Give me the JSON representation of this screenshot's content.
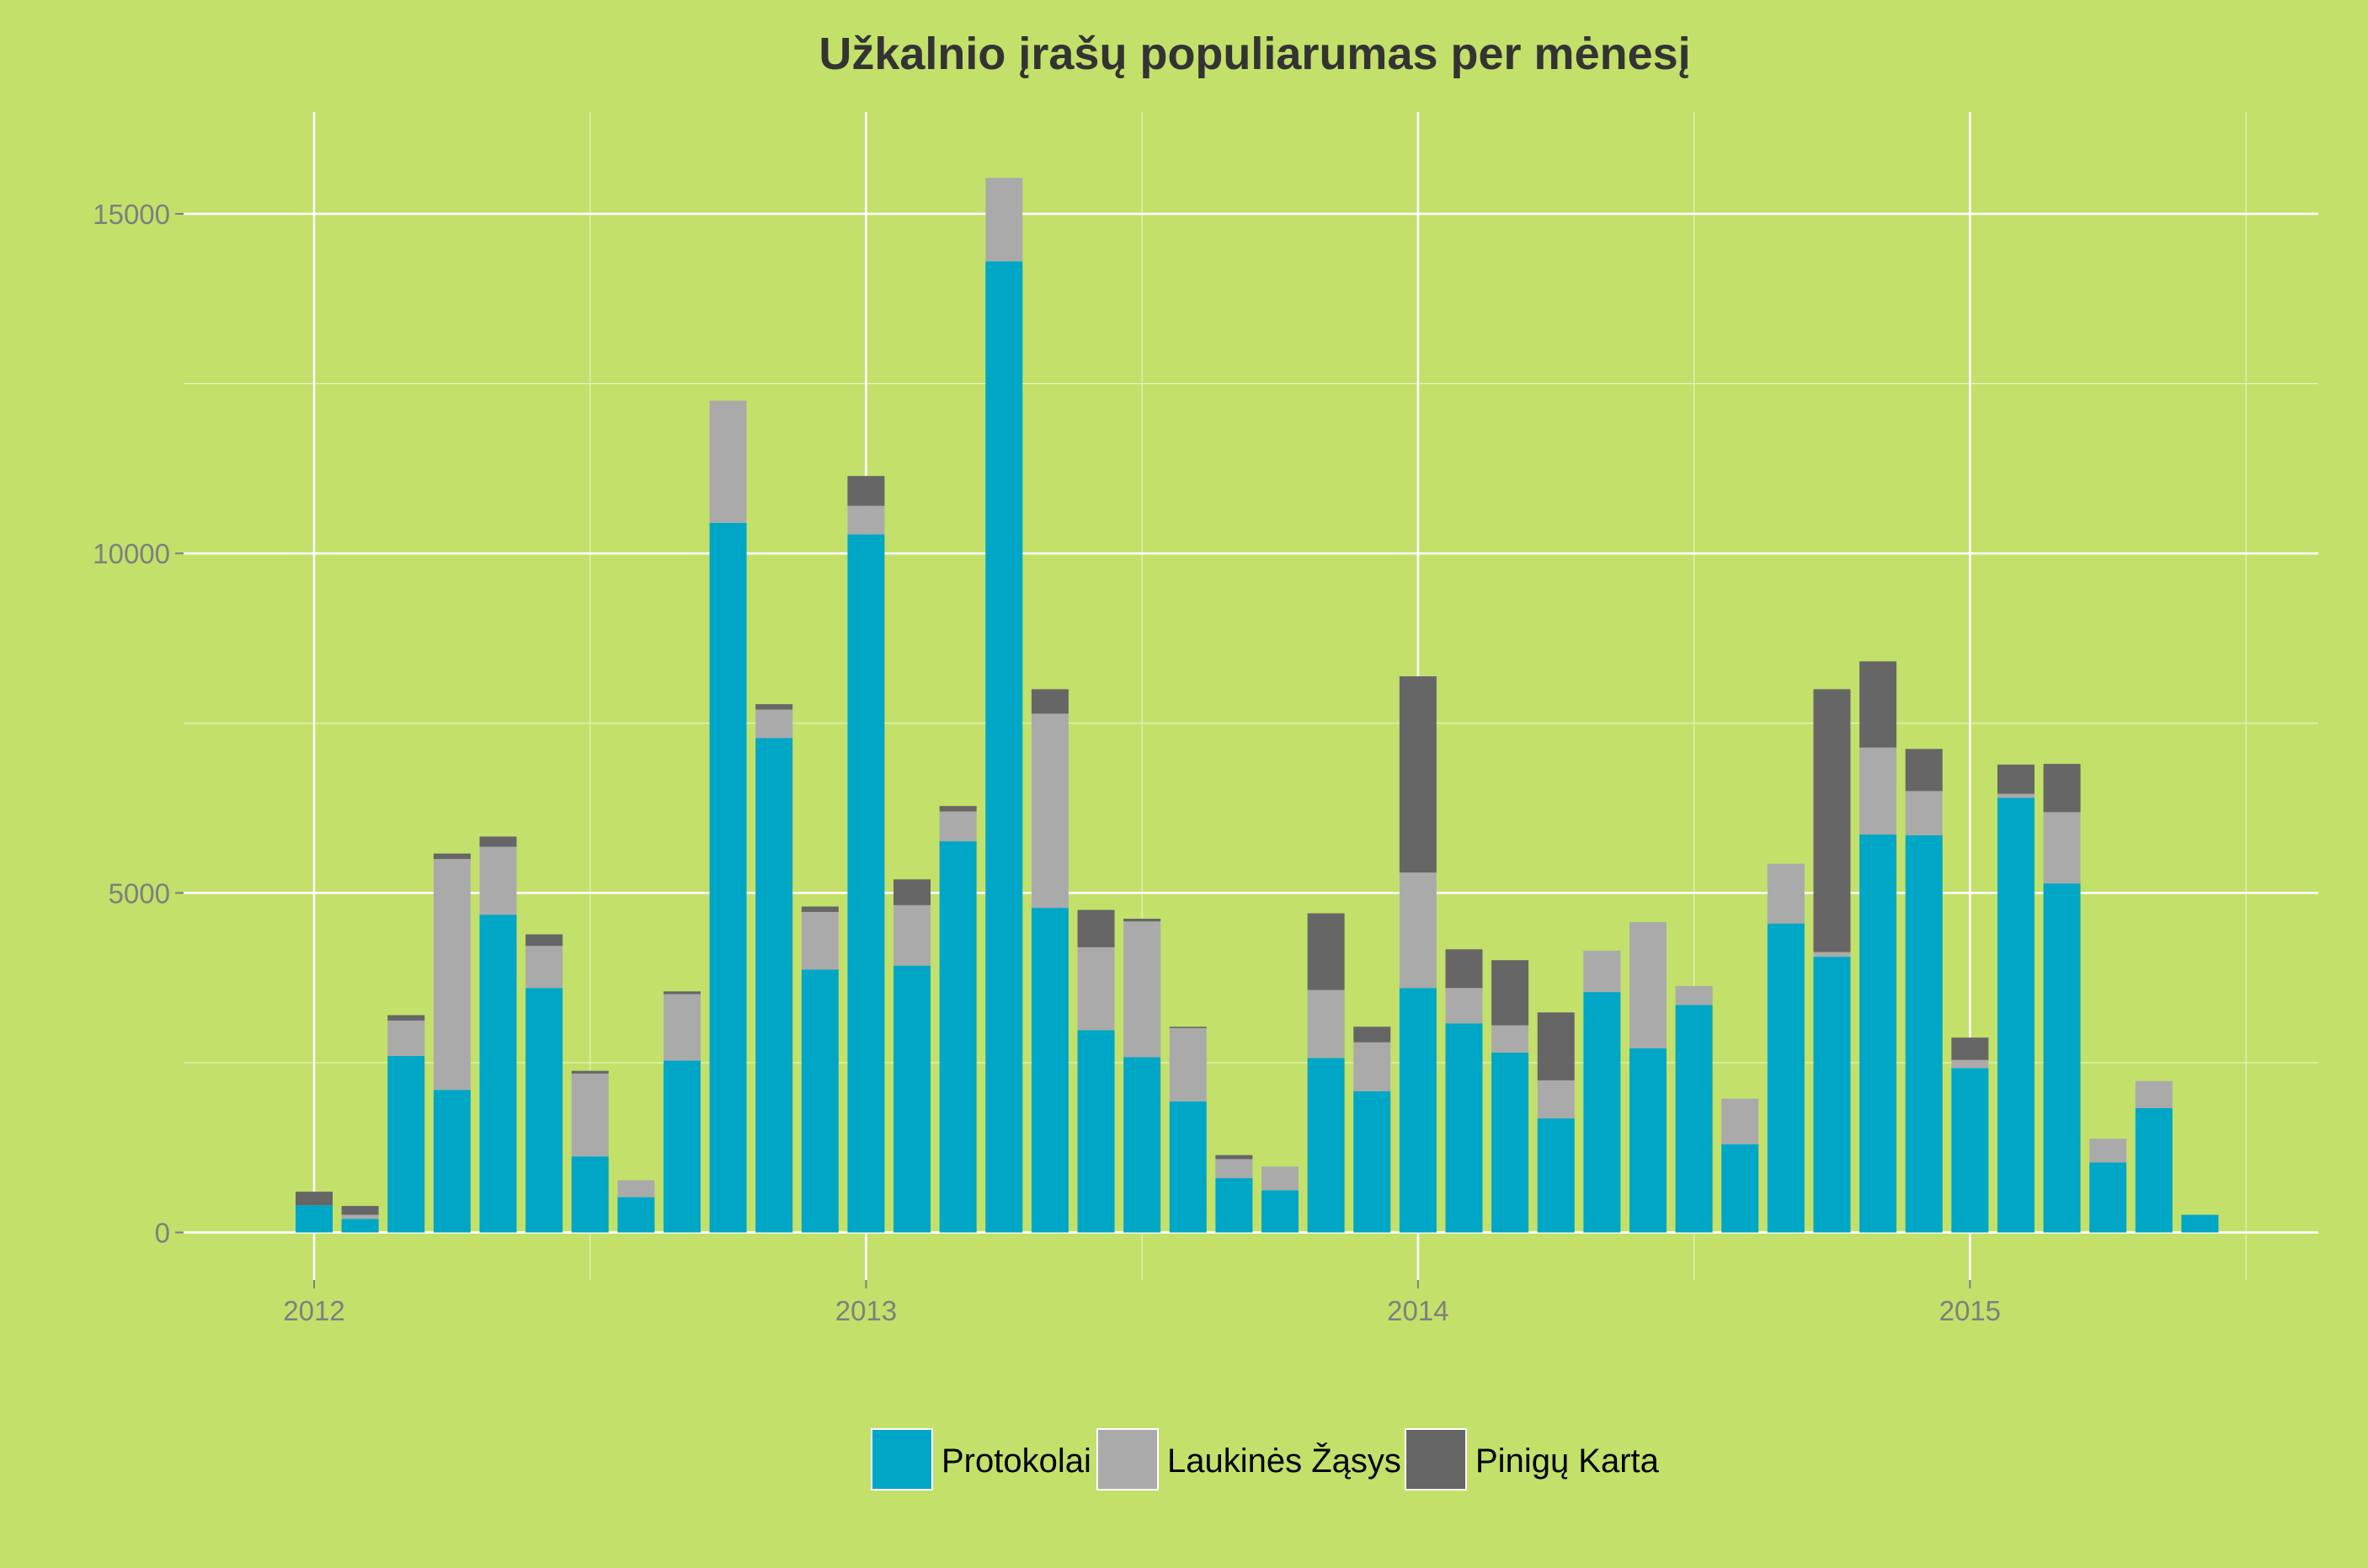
{
  "chart_data": {
    "type": "bar",
    "stacked": true,
    "title": "Užkalnio įrašų populiarumas per mėnesį",
    "xlabel": "",
    "ylabel": "",
    "x_ticks": [
      "2012",
      "2013",
      "2014",
      "2015"
    ],
    "y_ticks": [
      0,
      5000,
      10000,
      15000
    ],
    "ylim": [
      -700,
      16500
    ],
    "grid": true,
    "legend_position": "bottom",
    "start_month": "2012-01",
    "months": [
      "2012-01",
      "2012-02",
      "2012-03",
      "2012-04",
      "2012-05",
      "2012-06",
      "2012-07",
      "2012-08",
      "2012-09",
      "2012-10",
      "2012-11",
      "2012-12",
      "2013-01",
      "2013-02",
      "2013-03",
      "2013-04",
      "2013-05",
      "2013-06",
      "2013-07",
      "2013-08",
      "2013-09",
      "2013-10",
      "2013-11",
      "2013-12",
      "2014-01",
      "2014-02",
      "2014-03",
      "2014-04",
      "2014-05",
      "2014-06",
      "2014-07",
      "2014-08",
      "2014-09",
      "2014-10",
      "2014-11",
      "2014-12",
      "2015-01",
      "2015-02",
      "2015-03",
      "2015-04",
      "2015-05",
      "2015-06"
    ],
    "series": [
      {
        "name": "Protokolai",
        "color": "#00a6c6",
        "values": [
          400,
          200,
          2600,
          2100,
          4680,
          3600,
          1120,
          520,
          2530,
          10450,
          7280,
          3870,
          10280,
          3930,
          5760,
          14300,
          4780,
          2980,
          2580,
          1930,
          800,
          620,
          2570,
          2080,
          3600,
          3080,
          2650,
          1680,
          3540,
          2710,
          3350,
          1300,
          4550,
          4060,
          5860,
          5850,
          2420,
          6400,
          5140,
          1030,
          1830,
          260
        ]
      },
      {
        "name": "Laukinės Žąsys",
        "color": "#aaaaaa",
        "values": [
          0,
          60,
          520,
          3400,
          1000,
          620,
          1220,
          250,
          980,
          1800,
          420,
          850,
          420,
          890,
          440,
          1230,
          2860,
          1220,
          2000,
          1080,
          280,
          350,
          1000,
          720,
          1700,
          520,
          400,
          560,
          610,
          1860,
          280,
          670,
          880,
          70,
          1280,
          650,
          120,
          60,
          1050,
          350,
          400,
          0
        ]
      },
      {
        "name": "Pinigų Karta",
        "color": "#666666",
        "values": [
          200,
          130,
          80,
          80,
          150,
          170,
          40,
          0,
          40,
          0,
          80,
          80,
          440,
          380,
          80,
          0,
          360,
          550,
          40,
          20,
          60,
          0,
          1130,
          230,
          2890,
          570,
          960,
          1000,
          0,
          0,
          0,
          0,
          0,
          3870,
          1270,
          620,
          330,
          430,
          710,
          0,
          0,
          0
        ]
      }
    ]
  }
}
